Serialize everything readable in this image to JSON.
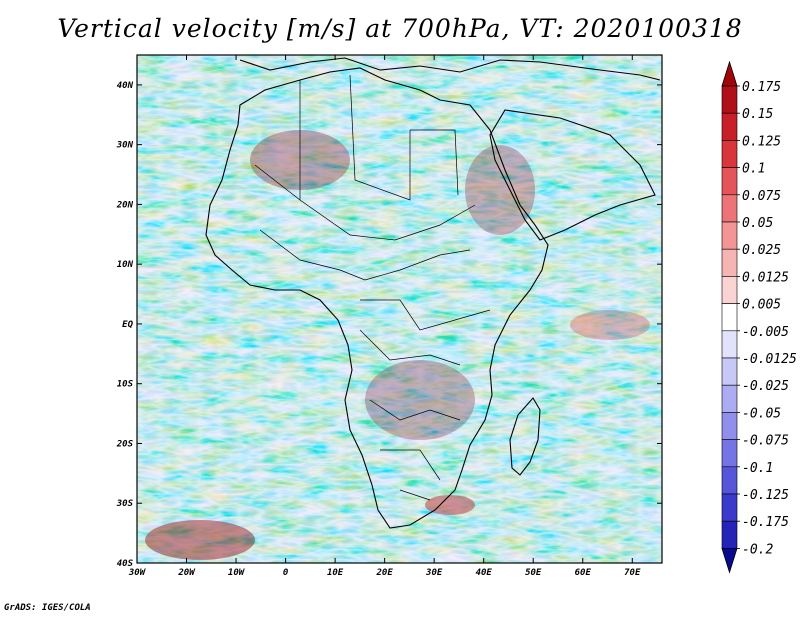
{
  "title": "Vertical velocity [m/s] at 700hPa, VT: 2020100318",
  "credit": "GrADS: IGES/COLA",
  "map": {
    "lon_range": [
      -30,
      76
    ],
    "lat_range": [
      -40,
      45
    ],
    "lon_ticks": [
      {
        "value": -30,
        "label": "30W"
      },
      {
        "value": -20,
        "label": "20W"
      },
      {
        "value": -10,
        "label": "10W"
      },
      {
        "value": 0,
        "label": "0"
      },
      {
        "value": 10,
        "label": "10E"
      },
      {
        "value": 20,
        "label": "20E"
      },
      {
        "value": 30,
        "label": "30E"
      },
      {
        "value": 40,
        "label": "40E"
      },
      {
        "value": 50,
        "label": "50E"
      },
      {
        "value": 60,
        "label": "60E"
      },
      {
        "value": 70,
        "label": "70E"
      }
    ],
    "lat_ticks": [
      {
        "value": 40,
        "label": "40N"
      },
      {
        "value": 30,
        "label": "30N"
      },
      {
        "value": 20,
        "label": "20N"
      },
      {
        "value": 10,
        "label": "10N"
      },
      {
        "value": 0,
        "label": "EQ"
      },
      {
        "value": -10,
        "label": "10S"
      },
      {
        "value": -20,
        "label": "20S"
      },
      {
        "value": -30,
        "label": "30S"
      },
      {
        "value": -40,
        "label": "40S"
      }
    ]
  },
  "colorbar": {
    "levels": [
      {
        "label": "0.175",
        "color": "#b01018"
      },
      {
        "label": "0.15",
        "color": "#c82028"
      },
      {
        "label": "0.125",
        "color": "#d8363a"
      },
      {
        "label": "0.1",
        "color": "#e4555a"
      },
      {
        "label": "0.075",
        "color": "#ec7476"
      },
      {
        "label": "0.05",
        "color": "#f29594"
      },
      {
        "label": "0.025",
        "color": "#f6b4b2"
      },
      {
        "label": "0.0125",
        "color": "#fad4d2"
      },
      {
        "label": "0.005",
        "color": "#ffffff"
      },
      {
        "label": "-0.005",
        "color": "#e2e2fa"
      },
      {
        "label": "-0.0125",
        "color": "#c8c8f6"
      },
      {
        "label": "-0.025",
        "color": "#acacf2"
      },
      {
        "label": "-0.05",
        "color": "#9090ec"
      },
      {
        "label": "-0.075",
        "color": "#7474e4"
      },
      {
        "label": "-0.1",
        "color": "#5656da"
      },
      {
        "label": "-0.125",
        "color": "#3a3acc"
      },
      {
        "label": "-0.175",
        "color": "#2424b8"
      },
      {
        "label": "-0.2",
        "color": "#1212a0"
      }
    ],
    "top_color": "#a00808",
    "bottom_color": "#0a0a90"
  }
}
